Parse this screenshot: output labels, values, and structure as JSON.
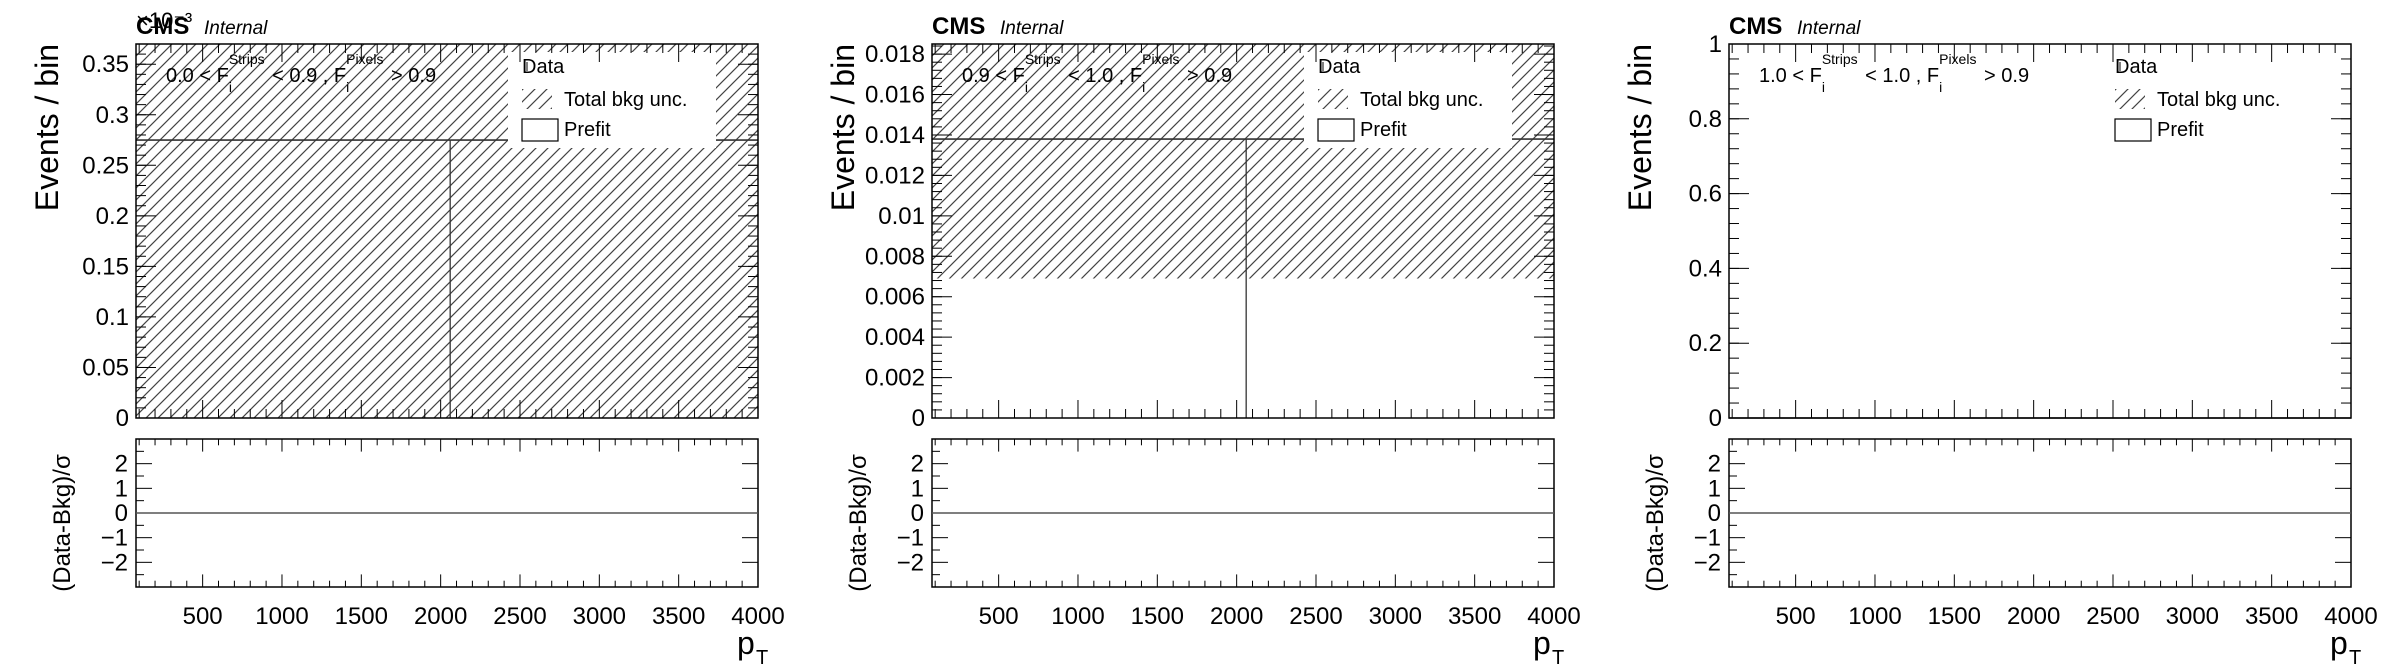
{
  "chart_data": [
    {
      "type": "bar",
      "cms_label": "CMS",
      "status_label": "Internal",
      "multiplier": "×10⁻³",
      "region_label": {
        "lo": "0.0",
        "hi": "0.9",
        "pix": "0.9",
        "f": "F",
        "sub": "i",
        "strips": "Strips",
        "pixels": "Pixels"
      },
      "x": {
        "label": "p",
        "sub": "T",
        "range": [
          80,
          4000
        ],
        "ticks": [
          "500",
          "1000",
          "1500",
          "2000",
          "2500",
          "3000",
          "3500",
          "4000"
        ]
      },
      "y": {
        "label": "Events / bin",
        "range": [
          0,
          0.37
        ],
        "ticks": [
          "0",
          "0.05",
          "0.1",
          "0.15",
          "0.2",
          "0.25",
          "0.3",
          "0.35"
        ]
      },
      "legend": {
        "position": "top-right",
        "entries": [
          "Data",
          "Total bkg unc.",
          "Prefit"
        ]
      },
      "bins": [
        [
          80,
          2060,
          0.275
        ],
        [
          2060,
          4000,
          0.275
        ]
      ],
      "unc": [
        [
          80,
          4000,
          0,
          0.37
        ]
      ],
      "ratio": {
        "label": "(Data-Bkg)/σ",
        "range": [
          -3,
          3
        ],
        "ticks": [
          "−2",
          "−1",
          "0",
          "1",
          "2"
        ]
      }
    },
    {
      "type": "bar",
      "cms_label": "CMS",
      "status_label": "Internal",
      "multiplier": "",
      "region_label": {
        "lo": "0.9",
        "hi": "1.0",
        "pix": "0.9",
        "f": "F",
        "sub": "i",
        "strips": "Strips",
        "pixels": "Pixels"
      },
      "x": {
        "label": "p",
        "sub": "T",
        "range": [
          80,
          4000
        ],
        "ticks": [
          "500",
          "1000",
          "1500",
          "2000",
          "2500",
          "3000",
          "3500",
          "4000"
        ]
      },
      "y": {
        "label": "Events / bin",
        "range": [
          0,
          0.0185
        ],
        "ticks": [
          "0",
          "0.002",
          "0.004",
          "0.006",
          "0.008",
          "0.01",
          "0.012",
          "0.014",
          "0.016",
          "0.018"
        ]
      },
      "legend": {
        "position": "top-right",
        "entries": [
          "Data",
          "Total bkg unc.",
          "Prefit"
        ]
      },
      "bins": [
        [
          80,
          2060,
          0.0138
        ],
        [
          2060,
          4000,
          0.0138
        ]
      ],
      "unc": [
        [
          80,
          4000,
          0.0069,
          0.0185
        ]
      ],
      "ratio": {
        "label": "(Data-Bkg)/σ",
        "range": [
          -3,
          3
        ],
        "ticks": [
          "−2",
          "−1",
          "0",
          "1",
          "2"
        ]
      }
    },
    {
      "type": "bar",
      "cms_label": "CMS",
      "status_label": "Internal",
      "multiplier": "",
      "region_label": {
        "lo": "1.0",
        "hi": "1.0",
        "pix": "0.9",
        "f": "F",
        "sub": "i",
        "strips": "Strips",
        "pixels": "Pixels"
      },
      "x": {
        "label": "p",
        "sub": "T",
        "range": [
          80,
          4000
        ],
        "ticks": [
          "500",
          "1000",
          "1500",
          "2000",
          "2500",
          "3000",
          "3500",
          "4000"
        ]
      },
      "y": {
        "label": "Events / bin",
        "range": [
          0,
          1
        ],
        "ticks": [
          "0",
          "0.2",
          "0.4",
          "0.6",
          "0.8",
          "1"
        ]
      },
      "legend": {
        "position": "top-right",
        "entries": [
          "Data",
          "Total bkg unc.",
          "Prefit"
        ]
      },
      "bins": [
        [
          80,
          2060,
          0
        ],
        [
          2060,
          4000,
          0
        ]
      ],
      "unc": [],
      "ratio": {
        "label": "(Data-Bkg)/σ",
        "range": [
          -3,
          3
        ],
        "ticks": [
          "−2",
          "−1",
          "0",
          "1",
          "2"
        ]
      }
    }
  ]
}
